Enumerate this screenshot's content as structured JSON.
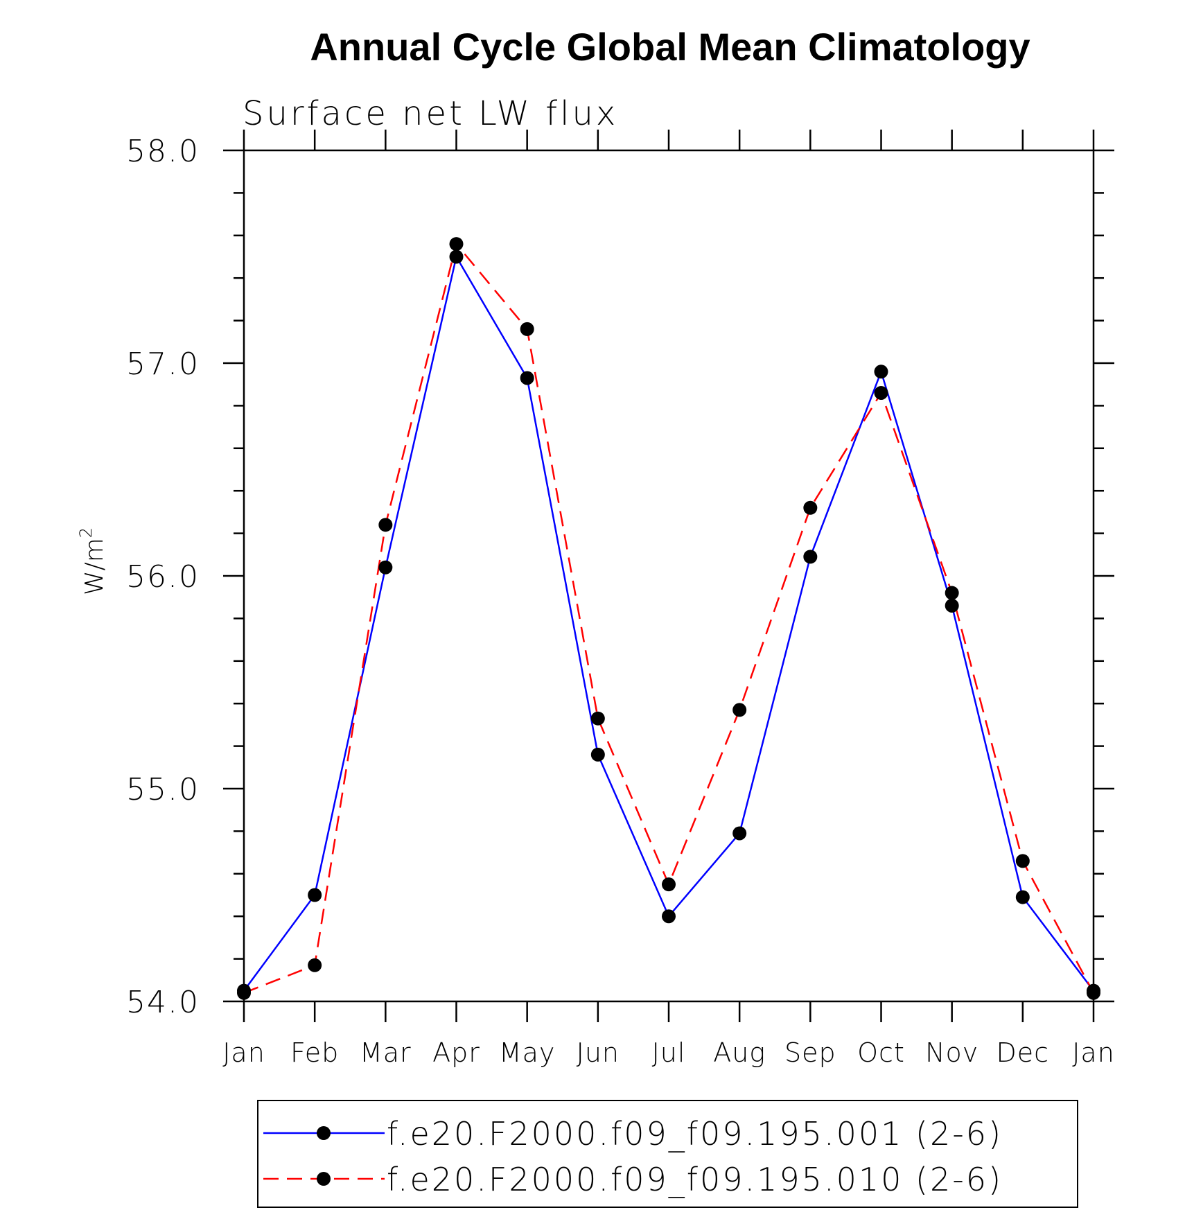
{
  "chart_data": {
    "type": "line",
    "title": "Annual Cycle Global Mean Climatology",
    "subtitle": "Surface net LW flux",
    "ylabel": "W/m",
    "ylabel_superscript": "2",
    "ylim": [
      54.0,
      58.0
    ],
    "yticks": [
      "54.0",
      "55.0",
      "56.0",
      "57.0",
      "58.0"
    ],
    "categories": [
      "Jan",
      "Feb",
      "Mar",
      "Apr",
      "May",
      "Jun",
      "Jul",
      "Aug",
      "Sep",
      "Oct",
      "Nov",
      "Dec",
      "Jan"
    ],
    "marker": "filled-circle",
    "series": [
      {
        "name": "f.e20.F2000.f09_f09.195.001 (2-6)",
        "color": "#0000ff",
        "dash": "solid",
        "values": [
          54.05,
          54.5,
          56.04,
          57.5,
          56.93,
          55.16,
          54.4,
          54.79,
          56.09,
          56.96,
          55.86,
          54.49,
          54.05
        ]
      },
      {
        "name": "f.e20.F2000.f09_f09.195.010 (2-6)",
        "color": "#ff0000",
        "dash": "dashed",
        "values": [
          54.04,
          54.17,
          56.24,
          57.56,
          57.16,
          55.33,
          54.55,
          55.37,
          56.32,
          56.86,
          55.92,
          54.66,
          54.04
        ]
      }
    ],
    "legend_position": "bottom"
  }
}
